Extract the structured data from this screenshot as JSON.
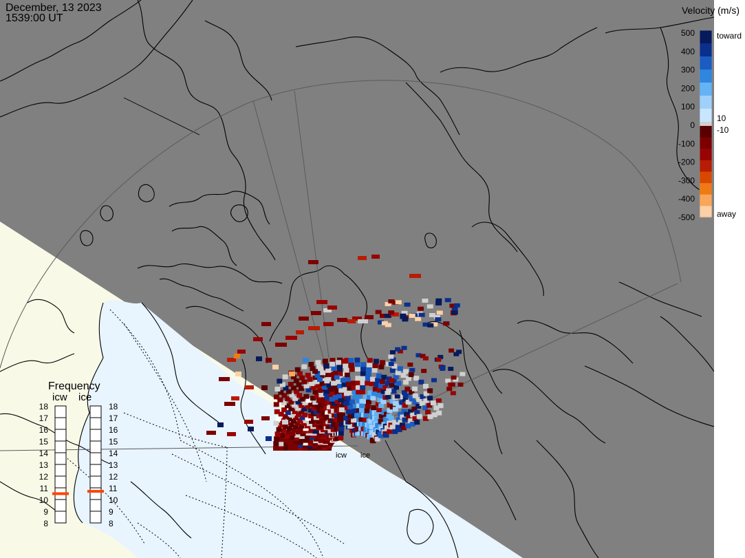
{
  "header": {
    "date": "December, 13 2023",
    "time": "1539:00 UT"
  },
  "velocity_scale": {
    "title": "Velocity (m/s)",
    "ticks": [
      "500",
      "400",
      "300",
      "200",
      "100",
      "0",
      "-100",
      "-200",
      "-300",
      "-400",
      "-500"
    ],
    "inner_ticks": [
      "10",
      "-10"
    ],
    "toward_label": "toward",
    "away_label": "away",
    "colors": {
      "toward": [
        "#c8e6ff",
        "#9fd0fb",
        "#64b3f4",
        "#2e86df",
        "#1a5cc2",
        "#0b2f8d",
        "#061a5c"
      ],
      "away": [
        "#5a0000",
        "#7d0000",
        "#980404",
        "#b81c04",
        "#d84800",
        "#ef7a14",
        "#f9a65a",
        "#fdd0a6"
      ],
      "zero": "#d0d0d0"
    }
  },
  "frequency": {
    "title": "Frequency",
    "radars": [
      {
        "name": "icw",
        "value_mhz": 10.5
      },
      {
        "name": "ice",
        "value_mhz": 10.7
      }
    ],
    "scale_labels": [
      "18",
      "17",
      "16",
      "15",
      "14",
      "13",
      "12",
      "11",
      "10",
      "9",
      "8"
    ],
    "marker_color": "#ff4400"
  },
  "map": {
    "night_color": "#808080",
    "day_color": "#f9f9e8",
    "sea_day_color": "#e8f4fe",
    "radar_sites": [
      "icw",
      "ice"
    ]
  }
}
